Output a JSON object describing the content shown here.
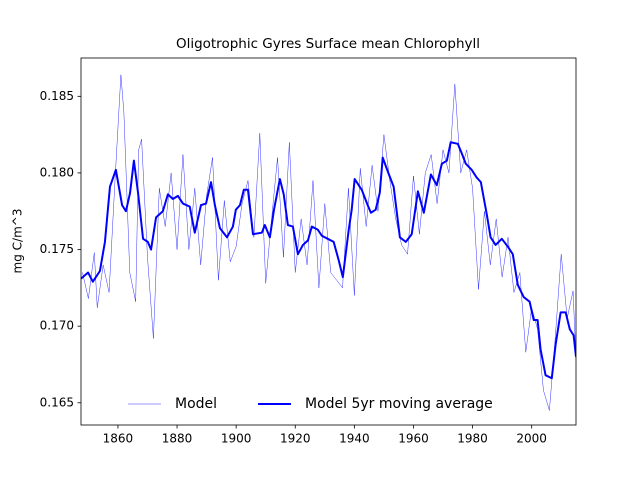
{
  "chart_data": {
    "type": "line",
    "title": "Oligotrophic Gyres Surface mean Chlorophyll",
    "ylabel": "mg C/m^3",
    "xlim": [
      1847.5,
      2015
    ],
    "xticks": [
      1860,
      1880,
      1900,
      1920,
      1940,
      1960,
      1980,
      2000
    ],
    "ylim": [
      0.16355,
      0.1875
    ],
    "yticks": [
      0.165,
      {
        "value": 0.17,
        "label": "0.170"
      },
      0.175,
      {
        "value": 0.18,
        "label": "0.180"
      },
      0.185
    ],
    "legend": "lower center",
    "series": [
      {
        "name": "Model",
        "color": "#0000ff",
        "width": 0.4,
        "x": [
          1848,
          1850,
          1852,
          1853,
          1855,
          1857,
          1859,
          1861,
          1862,
          1864,
          1866,
          1867,
          1868,
          1870,
          1872,
          1874,
          1876,
          1878,
          1880,
          1882,
          1884,
          1886,
          1888,
          1890,
          1892,
          1894,
          1896,
          1898,
          1900,
          1902,
          1904,
          1906,
          1908,
          1910,
          1912,
          1914,
          1916,
          1918,
          1920,
          1922,
          1924,
          1926,
          1928,
          1930,
          1932,
          1934,
          1936,
          1938,
          1940,
          1942,
          1944,
          1946,
          1948,
          1950,
          1952,
          1954,
          1956,
          1958,
          1960,
          1962,
          1964,
          1966,
          1968,
          1970,
          1972,
          1974,
          1976,
          1978,
          1980,
          1982,
          1984,
          1986,
          1988,
          1990,
          1992,
          1994,
          1996,
          1998,
          2000,
          2002,
          2004,
          2006,
          2008,
          2010,
          2012,
          2014,
          2015
        ],
        "values": [
          0.1735,
          0.1718,
          0.1748,
          0.1712,
          0.174,
          0.1722,
          0.1795,
          0.1864,
          0.184,
          0.1735,
          0.1716,
          0.1815,
          0.1822,
          0.1745,
          0.1692,
          0.179,
          0.1765,
          0.18,
          0.175,
          0.1812,
          0.175,
          0.179,
          0.174,
          0.1785,
          0.181,
          0.173,
          0.1782,
          0.1742,
          0.1752,
          0.178,
          0.1795,
          0.1758,
          0.1826,
          0.1728,
          0.177,
          0.181,
          0.1745,
          0.182,
          0.1735,
          0.177,
          0.174,
          0.1795,
          0.1725,
          0.178,
          0.1735,
          0.173,
          0.1725,
          0.179,
          0.172,
          0.1803,
          0.1765,
          0.1805,
          0.1775,
          0.1825,
          0.1795,
          0.177,
          0.1753,
          0.1747,
          0.1798,
          0.176,
          0.18,
          0.1812,
          0.178,
          0.1815,
          0.18,
          0.1858,
          0.18,
          0.1815,
          0.179,
          0.1724,
          0.1775,
          0.174,
          0.177,
          0.1732,
          0.1758,
          0.1722,
          0.1735,
          0.1683,
          0.1712,
          0.1698,
          0.1658,
          0.1645,
          0.1693,
          0.1747,
          0.1705,
          0.1723,
          0.1678
        ]
      },
      {
        "name": "Model 5yr moving average",
        "color": "#0000ff",
        "width": 2,
        "x": [
          1847.5,
          1849.9,
          1851.5,
          1853.9,
          1855.6,
          1857.3,
          1859.3,
          1861.4,
          1862.7,
          1864.1,
          1865.4,
          1866.8,
          1868.5,
          1870.1,
          1871.2,
          1872.9,
          1875.2,
          1876.9,
          1878.6,
          1880.3,
          1882.0,
          1884.3,
          1886.0,
          1888.1,
          1889.8,
          1891.5,
          1892.8,
          1894.5,
          1896.9,
          1898.9,
          1899.9,
          1901.3,
          1902.6,
          1904.0,
          1905.7,
          1908.7,
          1909.7,
          1911.4,
          1912.8,
          1914.8,
          1916.1,
          1917.5,
          1919.2,
          1920.9,
          1922.6,
          1924.3,
          1925.6,
          1927.6,
          1929.0,
          1931.0,
          1933.0,
          1934.7,
          1936.1,
          1938.1,
          1939.1,
          1940.1,
          1942.5,
          1944.5,
          1945.6,
          1947.2,
          1948.6,
          1949.6,
          1951.3,
          1953.3,
          1955.4,
          1957.4,
          1959.4,
          1961.5,
          1963.5,
          1965.9,
          1967.9,
          1969.6,
          1971.3,
          1972.6,
          1975.0,
          1976.3,
          1977.7,
          1979.7,
          1981.4,
          1982.8,
          1984.8,
          1986.1,
          1987.8,
          1989.9,
          1991.9,
          1993.6,
          1995.3,
          1997.3,
          1999.3,
          2000.7,
          2002.0,
          2003.0,
          2004.7,
          2006.8,
          2008.1,
          2009.8,
          2011.5,
          2012.9,
          2014.2,
          2015.0
        ],
        "values": [
          0.1731,
          0.1735,
          0.1729,
          0.1736,
          0.1755,
          0.1791,
          0.1802,
          0.1779,
          0.1775,
          0.1787,
          0.1808,
          0.1787,
          0.1757,
          0.1755,
          0.175,
          0.1771,
          0.1775,
          0.1786,
          0.1783,
          0.1785,
          0.178,
          0.1778,
          0.1761,
          0.1779,
          0.178,
          0.1794,
          0.1779,
          0.1764,
          0.1758,
          0.1765,
          0.1776,
          0.1779,
          0.1789,
          0.1789,
          0.176,
          0.1761,
          0.1766,
          0.1758,
          0.1776,
          0.1796,
          0.1786,
          0.1766,
          0.1765,
          0.1747,
          0.1753,
          0.1756,
          0.1765,
          0.1763,
          0.1759,
          0.1757,
          0.1755,
          0.1743,
          0.1732,
          0.1763,
          0.1776,
          0.1796,
          0.1789,
          0.1779,
          0.1774,
          0.1776,
          0.1787,
          0.181,
          0.1801,
          0.1791,
          0.1758,
          0.1755,
          0.176,
          0.1788,
          0.1774,
          0.1799,
          0.1792,
          0.1806,
          0.1808,
          0.182,
          0.1819,
          0.1813,
          0.1806,
          0.1802,
          0.1797,
          0.1794,
          0.1773,
          0.1758,
          0.1753,
          0.1757,
          0.1752,
          0.1747,
          0.1727,
          0.1719,
          0.1716,
          0.1704,
          0.1704,
          0.1685,
          0.1668,
          0.1666,
          0.1688,
          0.1709,
          0.1709,
          0.1698,
          0.1694,
          0.168
        ]
      }
    ]
  }
}
